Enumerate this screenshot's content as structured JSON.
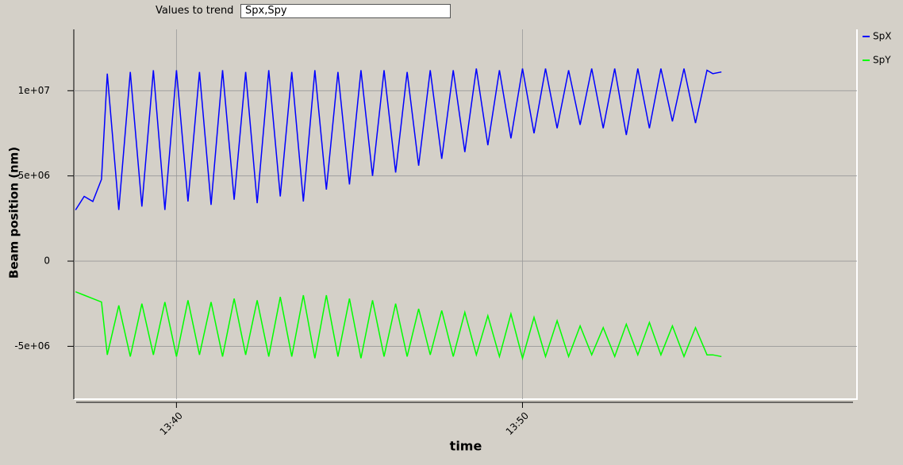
{
  "controls": {
    "label": "Values to trend",
    "input": "Spx,Spy"
  },
  "chart_data": {
    "type": "line",
    "xlabel": "time",
    "ylabel": "Beam position (nm)",
    "xlim": [
      "13:37:02",
      "13:59:40"
    ],
    "xticks": [
      "13:40",
      "13:50"
    ],
    "ylim": [
      -8100000,
      13600000
    ],
    "yticks": [
      {
        "value": -5000000,
        "label": "-5e+06"
      },
      0,
      {
        "value": 5000000,
        "label": "5e+06"
      },
      {
        "value": 10000000,
        "label": "1e+07"
      }
    ],
    "grid": true,
    "legend": "right",
    "x": [
      "13:37:05",
      "13:37:20",
      "13:37:35",
      "13:37:50",
      "13:38:00",
      "13:38:20",
      "13:38:40",
      "13:39:00",
      "13:39:20",
      "13:39:40",
      "13:40:00",
      "13:40:20",
      "13:40:40",
      "13:41:00",
      "13:41:20",
      "13:41:40",
      "13:42:00",
      "13:42:20",
      "13:42:40",
      "13:43:00",
      "13:43:20",
      "13:43:40",
      "13:44:00",
      "13:44:20",
      "13:44:40",
      "13:45:00",
      "13:45:20",
      "13:45:40",
      "13:46:00",
      "13:46:20",
      "13:46:40",
      "13:47:00",
      "13:47:20",
      "13:47:40",
      "13:48:00",
      "13:48:20",
      "13:48:40",
      "13:49:00",
      "13:49:20",
      "13:49:40",
      "13:50:00",
      "13:50:20",
      "13:50:40",
      "13:51:00",
      "13:51:20",
      "13:51:40",
      "13:52:00",
      "13:52:20",
      "13:52:40",
      "13:53:00",
      "13:53:20",
      "13:53:40",
      "13:54:00",
      "13:54:20",
      "13:54:40",
      "13:55:00",
      "13:55:20",
      "13:55:30",
      "13:55:45"
    ],
    "series": [
      {
        "name": "SpX",
        "color": "#0000ff",
        "values": [
          3000000,
          3800000,
          3500000,
          4800000,
          11000000,
          3000000,
          11100000,
          3200000,
          11200000,
          3000000,
          11200000,
          3500000,
          11100000,
          3300000,
          11200000,
          3600000,
          11100000,
          3400000,
          11200000,
          3800000,
          11100000,
          3500000,
          11200000,
          4200000,
          11100000,
          4500000,
          11200000,
          5000000,
          11200000,
          5200000,
          11100000,
          5600000,
          11200000,
          6000000,
          11200000,
          6400000,
          11300000,
          6800000,
          11200000,
          7200000,
          11300000,
          7500000,
          11300000,
          7800000,
          11200000,
          8000000,
          11300000,
          7800000,
          11300000,
          7400000,
          11300000,
          7800000,
          11300000,
          8200000,
          11300000,
          8100000,
          11200000,
          11000000,
          11100000
        ]
      },
      {
        "name": "SpY",
        "color": "#00ff00",
        "values": [
          -1800000,
          -2000000,
          -2200000,
          -2400000,
          -5500000,
          -2600000,
          -5600000,
          -2500000,
          -5500000,
          -2400000,
          -5600000,
          -2300000,
          -5500000,
          -2400000,
          -5600000,
          -2200000,
          -5500000,
          -2300000,
          -5600000,
          -2100000,
          -5600000,
          -2000000,
          -5700000,
          -2000000,
          -5600000,
          -2200000,
          -5700000,
          -2300000,
          -5600000,
          -2500000,
          -5600000,
          -2800000,
          -5500000,
          -2900000,
          -5600000,
          -3000000,
          -5500000,
          -3200000,
          -5600000,
          -3100000,
          -5700000,
          -3300000,
          -5600000,
          -3500000,
          -5600000,
          -3800000,
          -5500000,
          -3900000,
          -5600000,
          -3700000,
          -5500000,
          -3600000,
          -5500000,
          -3800000,
          -5600000,
          -3900000,
          -5500000,
          -5500000,
          -5600000
        ]
      }
    ]
  }
}
